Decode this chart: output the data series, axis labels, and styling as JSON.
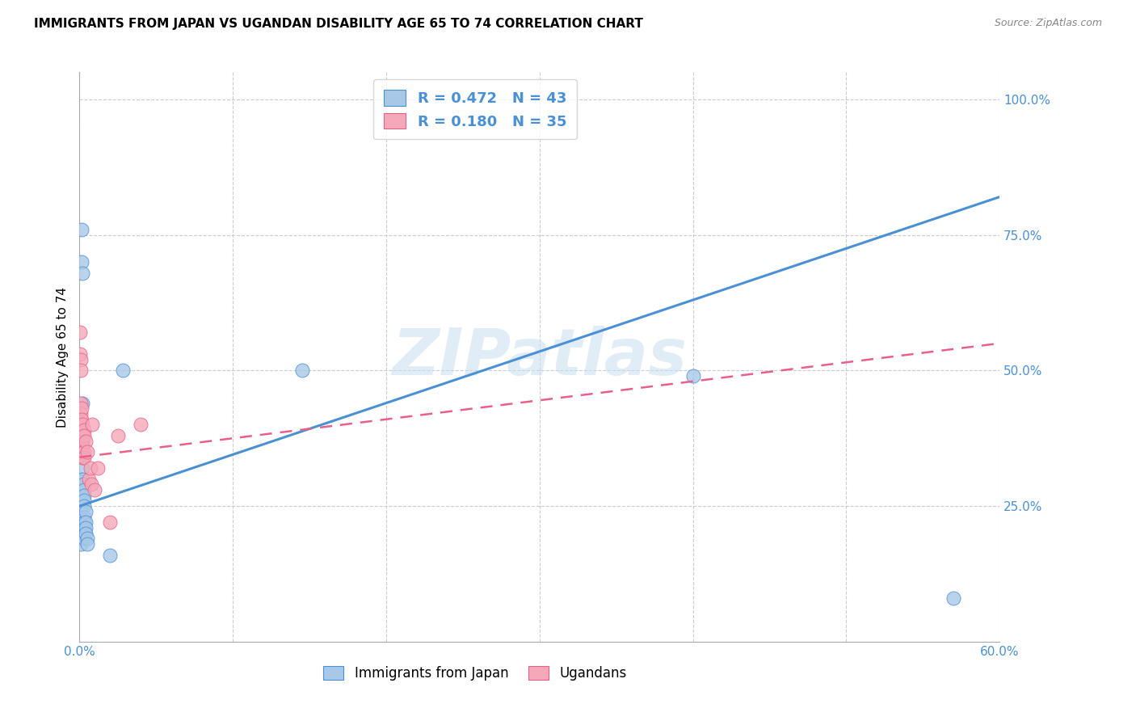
{
  "title": "IMMIGRANTS FROM JAPAN VS UGANDAN DISABILITY AGE 65 TO 74 CORRELATION CHART",
  "source": "Source: ZipAtlas.com",
  "ylabel_label": "Disability Age 65 to 74",
  "x_min": 0.0,
  "x_max": 0.6,
  "y_min": 0.0,
  "y_max": 1.05,
  "x_ticks": [
    0.0,
    0.1,
    0.2,
    0.3,
    0.4,
    0.5,
    0.6
  ],
  "x_tick_labels": [
    "0.0%",
    "",
    "",
    "",
    "",
    "",
    "60.0%"
  ],
  "y_ticks": [
    0.0,
    0.25,
    0.5,
    0.75,
    1.0
  ],
  "y_tick_labels": [
    "",
    "25.0%",
    "50.0%",
    "75.0%",
    "100.0%"
  ],
  "legend1_R": "0.472",
  "legend1_N": "43",
  "legend2_R": "0.180",
  "legend2_N": "35",
  "scatter_japan_color": "#a8c8e8",
  "scatter_uganda_color": "#f4a8b8",
  "line_japan_color": "#4a90d4",
  "line_uganda_color": "#e8608a",
  "watermark": "ZIPatlas",
  "japan_points": [
    [
      0.0005,
      0.24
    ],
    [
      0.0005,
      0.23
    ],
    [
      0.0005,
      0.22
    ],
    [
      0.0005,
      0.21
    ],
    [
      0.001,
      0.3
    ],
    [
      0.001,
      0.27
    ],
    [
      0.001,
      0.25
    ],
    [
      0.001,
      0.23
    ],
    [
      0.001,
      0.22
    ],
    [
      0.001,
      0.2
    ],
    [
      0.001,
      0.19
    ],
    [
      0.001,
      0.18
    ],
    [
      0.0015,
      0.76
    ],
    [
      0.0015,
      0.7
    ],
    [
      0.002,
      0.68
    ],
    [
      0.002,
      0.44
    ],
    [
      0.002,
      0.37
    ],
    [
      0.002,
      0.36
    ],
    [
      0.002,
      0.35
    ],
    [
      0.002,
      0.34
    ],
    [
      0.002,
      0.32
    ],
    [
      0.002,
      0.3
    ],
    [
      0.0025,
      0.29
    ],
    [
      0.003,
      0.28
    ],
    [
      0.003,
      0.27
    ],
    [
      0.003,
      0.26
    ],
    [
      0.003,
      0.25
    ],
    [
      0.003,
      0.23
    ],
    [
      0.003,
      0.22
    ],
    [
      0.003,
      0.21
    ],
    [
      0.003,
      0.2
    ],
    [
      0.003,
      0.19
    ],
    [
      0.004,
      0.24
    ],
    [
      0.004,
      0.22
    ],
    [
      0.004,
      0.21
    ],
    [
      0.004,
      0.2
    ],
    [
      0.005,
      0.19
    ],
    [
      0.005,
      0.18
    ],
    [
      0.02,
      0.16
    ],
    [
      0.028,
      0.5
    ],
    [
      0.145,
      0.5
    ],
    [
      0.4,
      0.49
    ],
    [
      0.57,
      0.08
    ]
  ],
  "uganda_points": [
    [
      0.0003,
      0.57
    ],
    [
      0.0005,
      0.53
    ],
    [
      0.0007,
      0.52
    ],
    [
      0.001,
      0.5
    ],
    [
      0.001,
      0.44
    ],
    [
      0.001,
      0.42
    ],
    [
      0.001,
      0.41
    ],
    [
      0.001,
      0.4
    ],
    [
      0.001,
      0.39
    ],
    [
      0.001,
      0.38
    ],
    [
      0.001,
      0.37
    ],
    [
      0.001,
      0.36
    ],
    [
      0.0015,
      0.43
    ],
    [
      0.0015,
      0.41
    ],
    [
      0.002,
      0.4
    ],
    [
      0.002,
      0.38
    ],
    [
      0.002,
      0.37
    ],
    [
      0.002,
      0.36
    ],
    [
      0.002,
      0.35
    ],
    [
      0.002,
      0.34
    ],
    [
      0.003,
      0.39
    ],
    [
      0.003,
      0.38
    ],
    [
      0.003,
      0.35
    ],
    [
      0.003,
      0.34
    ],
    [
      0.004,
      0.37
    ],
    [
      0.005,
      0.35
    ],
    [
      0.006,
      0.3
    ],
    [
      0.007,
      0.32
    ],
    [
      0.0075,
      0.29
    ],
    [
      0.008,
      0.4
    ],
    [
      0.01,
      0.28
    ],
    [
      0.012,
      0.32
    ],
    [
      0.02,
      0.22
    ],
    [
      0.025,
      0.38
    ],
    [
      0.04,
      0.4
    ]
  ],
  "japan_line_x": [
    0.0,
    0.6
  ],
  "japan_line_y": [
    0.25,
    0.82
  ],
  "uganda_line_x": [
    0.0,
    0.6
  ],
  "uganda_line_y": [
    0.34,
    0.55
  ]
}
